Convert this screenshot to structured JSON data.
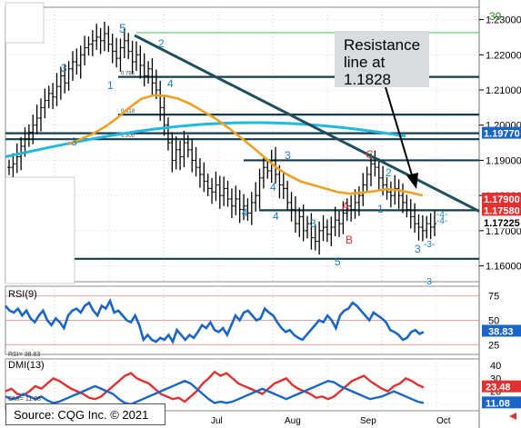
{
  "source_label": "Source: CQG Inc. © 2021",
  "annotation": {
    "line1": "Resistance",
    "line2": "line at",
    "line3": "1.1828"
  },
  "colors": {
    "price": "#000000",
    "ema_orange": "#f0a020",
    "ema_cyan": "#22b8e0",
    "trend": "#1d4f5f",
    "hline": "#153e4c",
    "fib_green": "#6bcf6b",
    "rsi": "#1a66c7",
    "dmi_red": "#e03030",
    "dmi_blue": "#1a66c7",
    "badge_red": "#e53030",
    "badge_blue": "#1a66c7",
    "wave": "#1f7fbf"
  },
  "chart_data": [
    {
      "type": "candlestick",
      "title": "",
      "x_labels": [
        "Jul",
        "Aug",
        "Sep",
        "Oct"
      ],
      "y_ticks": [
        "1.23000",
        "1.22000",
        "1.21000",
        "1.20000",
        "1.19000",
        "1.18000",
        "1.17000",
        "1.16000"
      ],
      "ylim": [
        1.1555,
        1.2335
      ],
      "price_badges": [
        {
          "text": "1.19770",
          "value": 1.1977,
          "color": "blue"
        },
        {
          "text": "1.17900",
          "value": 1.179,
          "color": "red"
        },
        {
          "text": "1.17580",
          "value": 1.1758,
          "color": "red"
        },
        {
          "text": "1.17225",
          "value": 1.17225,
          "color": "dark"
        }
      ],
      "ohlc_path": [
        1.188,
        1.189,
        1.191,
        1.194,
        1.196,
        1.198,
        1.2,
        1.202,
        1.205,
        1.207,
        1.209,
        1.208,
        1.211,
        1.214,
        1.212,
        1.216,
        1.218,
        1.217,
        1.22,
        1.222,
        1.223,
        1.224,
        1.225,
        1.224,
        1.226,
        1.223,
        1.221,
        1.219,
        1.222,
        1.224,
        1.221,
        1.218,
        1.22,
        1.217,
        1.214,
        1.216,
        1.212,
        1.21,
        1.205,
        1.2,
        1.195,
        1.19,
        1.193,
        1.191,
        1.195,
        1.193,
        1.19,
        1.188,
        1.186,
        1.184,
        1.182,
        1.181,
        1.183,
        1.18,
        1.182,
        1.179,
        1.177,
        1.179,
        1.176,
        1.177,
        1.175,
        1.178,
        1.18,
        1.185,
        1.188,
        1.187,
        1.19,
        1.186,
        1.183,
        1.182,
        1.178,
        1.176,
        1.172,
        1.174,
        1.17,
        1.172,
        1.168,
        1.167,
        1.17,
        1.171,
        1.169,
        1.171,
        1.173,
        1.172,
        1.175,
        1.177,
        1.176,
        1.178,
        1.18,
        1.183,
        1.186,
        1.189,
        1.188,
        1.185,
        1.183,
        1.181,
        1.18,
        1.182,
        1.18,
        1.178,
        1.176,
        1.174,
        1.172,
        1.171,
        1.17,
        1.172,
        1.171,
        1.172
      ],
      "horizontal_levels": [
        1.2137,
        1.203,
        1.1977,
        1.196,
        1.19,
        1.1758,
        1.162
      ],
      "trend_line": {
        "from": 1.2255,
        "to": 1.1755
      },
      "wave_labels": [
        "5",
        "2",
        "3",
        "1",
        "4",
        "3",
        "4",
        "3",
        "A",
        "C",
        "2",
        "1",
        "B",
        "5",
        "3",
        "4",
        "4",
        "3"
      ],
      "annotations": [
        "39",
        "-4-",
        "-4-",
        "-3-",
        "-3-"
      ]
    },
    {
      "type": "line",
      "title": "RSI(9)",
      "y_ticks": [
        "75",
        "50",
        "25"
      ],
      "ylim": [
        15,
        85
      ],
      "latest": "38.83",
      "readout": "RSI=  38.83",
      "values": [
        65,
        60,
        58,
        62,
        55,
        60,
        52,
        48,
        55,
        60,
        50,
        45,
        52,
        48,
        42,
        55,
        60,
        62,
        58,
        65,
        68,
        60,
        55,
        65,
        62,
        70,
        58,
        60,
        55,
        50,
        48,
        55,
        45,
        30,
        35,
        30,
        28,
        32,
        30,
        35,
        28,
        40,
        35,
        30,
        35,
        32,
        38,
        45,
        42,
        48,
        40,
        38,
        42,
        35,
        45,
        55,
        50,
        58,
        60,
        55,
        50,
        52,
        62,
        58,
        55,
        48,
        42,
        38,
        40,
        35,
        32,
        30,
        35,
        40,
        45,
        50,
        48,
        55,
        50,
        42,
        55,
        60,
        62,
        68,
        65,
        60,
        55,
        50,
        58,
        55,
        52,
        48,
        40,
        38,
        35,
        30,
        32,
        38,
        40,
        36,
        38
      ]
    },
    {
      "type": "line",
      "title": "DMI(13)",
      "y_ticks": [
        "40",
        "30",
        "20",
        "10"
      ],
      "ylim": [
        5,
        45
      ],
      "series": [
        {
          "name": "",
          "latest": "23.48",
          "values": [
            20,
            22,
            18,
            17,
            20,
            24,
            22,
            26,
            30,
            28,
            25,
            22,
            20,
            18,
            15,
            14,
            16,
            20,
            24,
            28,
            32,
            34,
            30,
            28,
            26,
            22,
            18,
            16,
            14,
            15,
            12,
            16,
            20,
            26,
            30,
            35,
            32,
            34,
            30,
            26,
            24,
            22,
            20,
            18,
            22,
            26,
            28,
            30,
            25,
            22,
            20,
            18,
            15,
            16,
            14,
            16,
            20,
            24,
            28,
            30,
            32,
            28,
            25,
            22,
            20,
            24,
            26,
            30,
            28,
            25,
            23
          ]
        },
        {
          "name": "",
          "latest": "11.08",
          "values": [
            16,
            14,
            15,
            18,
            16,
            14,
            16,
            13,
            11,
            12,
            14,
            16,
            18,
            20,
            22,
            24,
            22,
            20,
            18,
            14,
            11,
            10,
            12,
            14,
            16,
            18,
            20,
            22,
            24,
            26,
            28,
            26,
            22,
            18,
            14,
            11,
            12,
            11,
            12,
            14,
            16,
            18,
            20,
            22,
            20,
            18,
            16,
            14,
            16,
            18,
            20,
            22,
            24,
            26,
            28,
            27,
            24,
            22,
            20,
            18,
            16,
            14,
            15,
            16,
            18,
            20,
            18,
            16,
            14,
            12,
            11
          ]
        }
      ],
      "readout": "DMI=  11.08"
    }
  ],
  "panel_titles": {
    "rsi": "RSI(9)",
    "dmi": "DMI(13)"
  }
}
